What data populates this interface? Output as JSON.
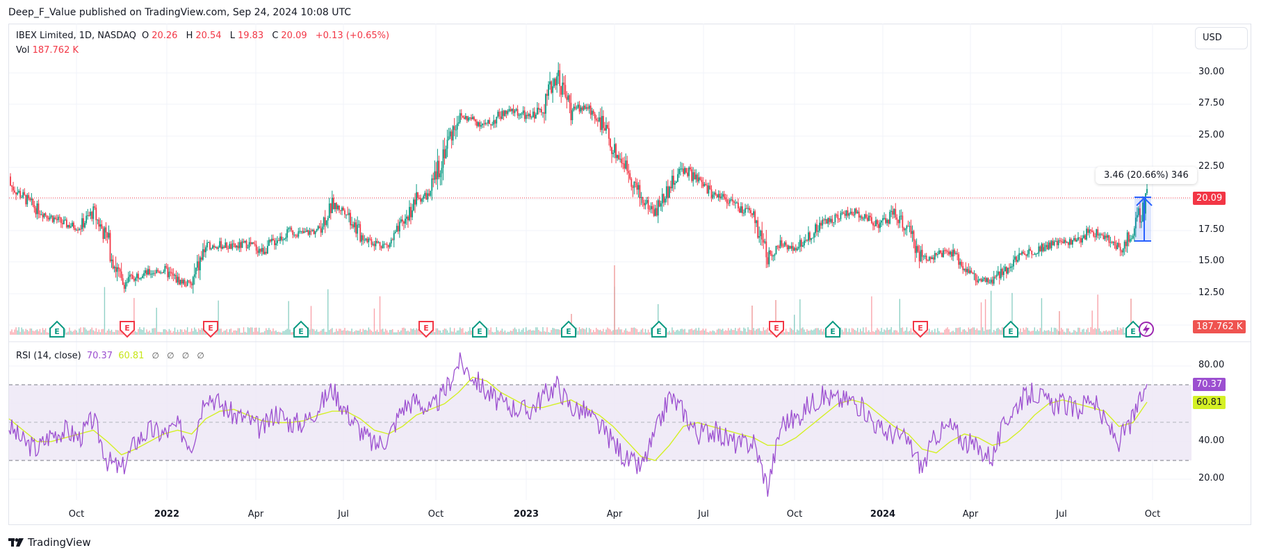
{
  "header": {
    "published": "Deep_F_Value published on TradingView.com, Sep 24, 2024 10:08 UTC"
  },
  "legend": {
    "symbol": "IBEX Limited, 1D, NASDAQ",
    "open_label": "O",
    "open": "20.26",
    "high_label": "H",
    "high": "20.54",
    "low_label": "L",
    "low": "19.83",
    "close_label": "C",
    "close": "20.09",
    "change": "+0.13 (+0.65%)",
    "vol_label": "Vol",
    "vol": "187.762 K"
  },
  "rsi_legend": {
    "label": "RSI (14, close)",
    "rsi": "70.37",
    "ma": "60.81",
    "placeholders": [
      "∅",
      "∅",
      "∅",
      "∅"
    ]
  },
  "currency_button": "USD",
  "price_axis": {
    "ticks": [
      "30.00",
      "27.50",
      "25.00",
      "22.50",
      "17.50",
      "15.00",
      "12.50"
    ],
    "last_price_tag": "20.09",
    "volume_tag": "187.762 K"
  },
  "rsi_axis": {
    "ticks": [
      "80.00",
      "40.00",
      "20.00"
    ],
    "rsi_tag": "70.37",
    "ma_tag": "60.81"
  },
  "time_axis": [
    {
      "label": "Oct",
      "year": false
    },
    {
      "label": "2022",
      "year": true
    },
    {
      "label": "Apr",
      "year": false
    },
    {
      "label": "Jul",
      "year": false
    },
    {
      "label": "Oct",
      "year": false
    },
    {
      "label": "2023",
      "year": true
    },
    {
      "label": "Apr",
      "year": false
    },
    {
      "label": "Jul",
      "year": false
    },
    {
      "label": "Oct",
      "year": false
    },
    {
      "label": "2024",
      "year": true
    },
    {
      "label": "Apr",
      "year": false
    },
    {
      "label": "Jul",
      "year": false
    },
    {
      "label": "Oct",
      "year": false
    }
  ],
  "measure_tool": {
    "label": "3.46 (20.66%) 346"
  },
  "earnings_markers": [
    {
      "type": "E",
      "color": "green"
    },
    {
      "type": "E",
      "color": "red"
    },
    {
      "type": "E",
      "color": "red"
    },
    {
      "type": "E",
      "color": "green"
    },
    {
      "type": "E",
      "color": "red"
    },
    {
      "type": "E",
      "color": "green"
    },
    {
      "type": "E",
      "color": "green"
    },
    {
      "type": "E",
      "color": "green"
    },
    {
      "type": "E",
      "color": "red"
    },
    {
      "type": "E",
      "color": "green"
    },
    {
      "type": "E",
      "color": "red"
    },
    {
      "type": "E",
      "color": "green"
    },
    {
      "type": "E",
      "color": "green"
    }
  ],
  "brand": "TradingView",
  "colors": {
    "up": "#089981",
    "down": "#f23645",
    "rsi": "#9c4fd0",
    "rsi_ma": "#d4f025",
    "rsi_band": "#ede7f6",
    "measure": "#2962ff",
    "grid": "#f0f3fa"
  },
  "chart_data": [
    {
      "type": "candlestick",
      "title": "IBEX Limited, 1D, NASDAQ",
      "ylabel": "USD",
      "ylim": [
        10.5,
        31.5
      ],
      "y_ticks": [
        12.5,
        15.0,
        17.5,
        20.0,
        22.5,
        25.0,
        27.5,
        30.0
      ],
      "x_ticks": [
        "Oct",
        "2022",
        "Apr",
        "Jul",
        "Oct",
        "2023",
        "Apr",
        "Jul",
        "Oct",
        "2024",
        "Apr",
        "Jul",
        "Oct"
      ],
      "last": {
        "open": 20.26,
        "high": 20.54,
        "low": 19.83,
        "close": 20.09,
        "change": 0.13,
        "change_pct": 0.65
      },
      "x": [
        "2021-08-16",
        "2021-08-30",
        "2021-09-13",
        "2021-09-27",
        "2021-10-11",
        "2021-10-25",
        "2021-11-08",
        "2021-11-22",
        "2021-12-06",
        "2021-12-20",
        "2022-01-03",
        "2022-01-17",
        "2022-01-31",
        "2022-02-14",
        "2022-02-28",
        "2022-03-14",
        "2022-03-28",
        "2022-04-11",
        "2022-04-25",
        "2022-05-09",
        "2022-05-23",
        "2022-06-06",
        "2022-06-20",
        "2022-07-04",
        "2022-07-18",
        "2022-08-01",
        "2022-08-15",
        "2022-08-29",
        "2022-09-12",
        "2022-09-26",
        "2022-10-10",
        "2022-10-24",
        "2022-11-07",
        "2022-11-21",
        "2022-12-05",
        "2022-12-19",
        "2023-01-02",
        "2023-01-16",
        "2023-01-30",
        "2023-02-13",
        "2023-02-27",
        "2023-03-13",
        "2023-03-27",
        "2023-04-10",
        "2023-04-24",
        "2023-05-08",
        "2023-05-22",
        "2023-06-05",
        "2023-06-19",
        "2023-07-03",
        "2023-07-17",
        "2023-07-31",
        "2023-08-14",
        "2023-08-28",
        "2023-09-11",
        "2023-09-25",
        "2023-10-09",
        "2023-10-23",
        "2023-11-06",
        "2023-11-20",
        "2023-12-04",
        "2023-12-18",
        "2024-01-01",
        "2024-01-15",
        "2024-01-29",
        "2024-02-12",
        "2024-02-26",
        "2024-03-11",
        "2024-03-25",
        "2024-04-08",
        "2024-04-22",
        "2024-05-06",
        "2024-05-20",
        "2024-06-03",
        "2024-06-17",
        "2024-07-01",
        "2024-07-15",
        "2024-07-29",
        "2024-08-12",
        "2024-08-26",
        "2024-09-09",
        "2024-09-23"
      ],
      "close": [
        21.2,
        20.2,
        19.2,
        18.6,
        18.0,
        17.8,
        19.0,
        16.8,
        13.2,
        14.0,
        14.2,
        14.4,
        13.6,
        13.2,
        16.3,
        16.4,
        16.2,
        16.5,
        15.9,
        16.8,
        17.4,
        17.3,
        17.6,
        19.5,
        19.1,
        17.2,
        16.6,
        16.3,
        18.0,
        20.0,
        20.4,
        24.0,
        26.6,
        26.3,
        25.8,
        26.7,
        27.0,
        26.4,
        27.3,
        30.0,
        27.1,
        27.3,
        26.4,
        24.0,
        22.5,
        20.0,
        19.0,
        21.0,
        22.5,
        21.5,
        20.5,
        20.2,
        19.2,
        18.8,
        15.5,
        16.4,
        16.2,
        17.2,
        18.2,
        18.7,
        19.0,
        18.6,
        18.0,
        18.9,
        17.5,
        15.3,
        15.6,
        15.8,
        14.7,
        13.5,
        13.5,
        14.6,
        15.6,
        16.0,
        16.4,
        16.6,
        16.7,
        17.5,
        17.0,
        16.0,
        17.4,
        20.09
      ],
      "series": [
        {
          "name": "Volume",
          "last": "187.762 K"
        }
      ]
    },
    {
      "type": "line",
      "title": "RSI (14, close)",
      "ylim": [
        10,
        90
      ],
      "y_ticks": [
        20,
        40,
        80
      ],
      "bands": {
        "upper": 70,
        "middle": 50,
        "lower": 30
      },
      "series": [
        {
          "name": "RSI",
          "last": 70.37,
          "values": [
            48,
            40,
            36,
            44,
            46,
            42,
            52,
            30,
            25,
            40,
            46,
            44,
            48,
            38,
            66,
            60,
            54,
            52,
            46,
            56,
            50,
            50,
            58,
            68,
            56,
            46,
            38,
            42,
            58,
            62,
            56,
            66,
            82,
            75,
            66,
            60,
            58,
            56,
            64,
            70,
            58,
            56,
            48,
            40,
            30,
            26,
            44,
            64,
            56,
            44,
            46,
            42,
            38,
            40,
            16,
            50,
            52,
            60,
            64,
            62,
            62,
            56,
            46,
            44,
            40,
            26,
            44,
            48,
            40,
            36,
            32,
            52,
            62,
            66,
            60,
            60,
            56,
            64,
            50,
            40,
            52,
            70.37
          ]
        },
        {
          "name": "RSI-based MA",
          "last": 60.81,
          "values": [
            52,
            46,
            40,
            40,
            42,
            44,
            46,
            40,
            33,
            36,
            40,
            44,
            46,
            44,
            52,
            56,
            57,
            54,
            51,
            50,
            50,
            51,
            54,
            56,
            56,
            52,
            46,
            44,
            48,
            54,
            57,
            60,
            66,
            74,
            72,
            66,
            62,
            58,
            58,
            60,
            62,
            58,
            54,
            48,
            40,
            32,
            30,
            38,
            48,
            50,
            48,
            46,
            44,
            42,
            38,
            38,
            42,
            48,
            54,
            60,
            62,
            60,
            54,
            48,
            44,
            36,
            34,
            40,
            44,
            42,
            38,
            40,
            46,
            54,
            60,
            62,
            60,
            58,
            56,
            48,
            50,
            60.81
          ]
        }
      ]
    }
  ]
}
